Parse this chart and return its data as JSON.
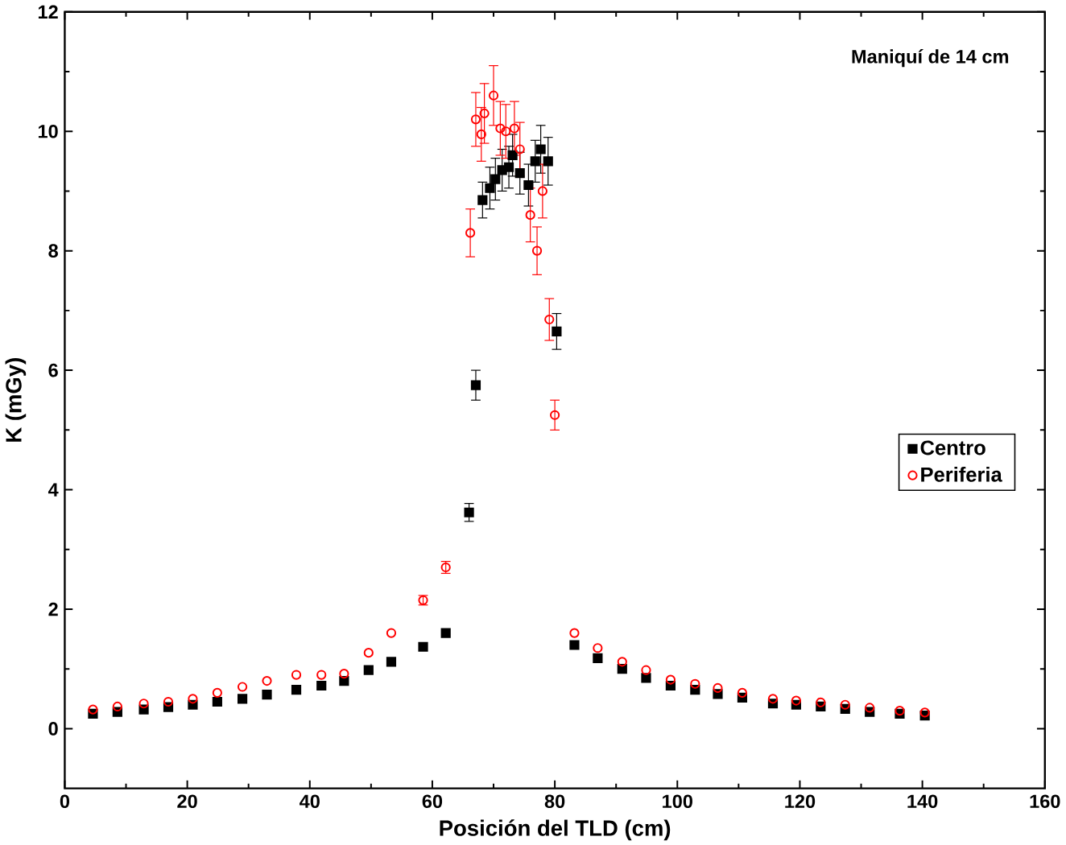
{
  "chart_data": {
    "type": "scatter",
    "xlabel": "Posición del TLD (cm)",
    "ylabel": "K (mGy)",
    "annotations": [
      "Maniquí de 14 cm"
    ],
    "xlim": [
      0,
      160
    ],
    "ylim": [
      -1,
      12
    ],
    "xticks": [
      0,
      20,
      40,
      60,
      80,
      100,
      120,
      140,
      160
    ],
    "yticks": [
      0,
      2,
      4,
      6,
      8,
      10,
      12
    ],
    "legend": "right",
    "grid": false,
    "series": [
      {
        "name": "Centro",
        "color": "#000000",
        "marker": "square",
        "x": [
          4.6,
          8.6,
          12.9,
          16.9,
          20.9,
          24.9,
          29,
          33,
          37.8,
          41.9,
          45.6,
          49.6,
          53.3,
          58.5,
          62.2,
          66,
          67.1,
          68.2,
          69.4,
          70.3,
          71.4,
          72.5,
          73.1,
          74.3,
          75.7,
          76.8,
          77.7,
          78.9,
          80.3,
          83.2,
          87,
          91,
          94.9,
          98.9,
          102.9,
          106.6,
          110.6,
          115.6,
          119.4,
          123.4,
          127.4,
          131.4,
          136.3,
          140.4
        ],
        "values": [
          0.25,
          0.28,
          0.32,
          0.36,
          0.4,
          0.45,
          0.5,
          0.57,
          0.65,
          0.72,
          0.8,
          0.98,
          1.12,
          1.37,
          1.6,
          3.62,
          5.75,
          8.85,
          9.05,
          9.2,
          9.35,
          9.4,
          9.6,
          9.3,
          9.1,
          9.5,
          9.7,
          9.5,
          6.65,
          1.4,
          1.18,
          1.0,
          0.85,
          0.72,
          0.65,
          0.58,
          0.52,
          0.42,
          0.4,
          0.37,
          0.33,
          0.28,
          0.25,
          0.22
        ],
        "errors": [
          null,
          null,
          null,
          null,
          null,
          null,
          null,
          null,
          null,
          null,
          null,
          null,
          null,
          null,
          null,
          0.15,
          0.25,
          0.3,
          0.35,
          0.35,
          0.35,
          0.35,
          0.35,
          0.35,
          0.35,
          0.35,
          0.4,
          0.4,
          0.3,
          null,
          null,
          null,
          null,
          null,
          null,
          null,
          null,
          null,
          null,
          null,
          null,
          null,
          null,
          null
        ]
      },
      {
        "name": "Periferia",
        "color": "#ff0000",
        "marker": "circle",
        "x": [
          4.6,
          8.6,
          12.9,
          16.9,
          20.9,
          24.9,
          29,
          33,
          37.8,
          41.9,
          45.6,
          49.6,
          53.3,
          58.5,
          62.2,
          66.2,
          67.1,
          68,
          68.5,
          70,
          71.1,
          72,
          73.4,
          74.3,
          76,
          77.1,
          78,
          79.1,
          80,
          83.2,
          87,
          91,
          94.9,
          98.9,
          102.9,
          106.6,
          110.6,
          115.6,
          119.4,
          123.4,
          127.4,
          131.4,
          136.3,
          140.4
        ],
        "values": [
          0.32,
          0.37,
          0.42,
          0.45,
          0.5,
          0.6,
          0.7,
          0.8,
          0.9,
          0.9,
          0.92,
          1.27,
          1.6,
          2.15,
          2.7,
          8.3,
          10.2,
          9.95,
          10.3,
          10.6,
          10.05,
          10.0,
          10.05,
          9.7,
          8.6,
          8.0,
          9.0,
          6.85,
          5.25,
          1.6,
          1.35,
          1.12,
          0.98,
          0.82,
          0.75,
          0.68,
          0.6,
          0.5,
          0.47,
          0.44,
          0.4,
          0.35,
          0.3,
          0.27
        ],
        "errors": [
          null,
          null,
          null,
          null,
          null,
          null,
          null,
          null,
          null,
          null,
          null,
          null,
          null,
          0.08,
          0.1,
          0.4,
          0.45,
          0.45,
          0.5,
          0.5,
          0.45,
          0.45,
          0.45,
          0.45,
          0.45,
          0.4,
          0.45,
          0.35,
          0.25,
          null,
          null,
          null,
          null,
          null,
          null,
          null,
          null,
          null,
          null,
          null,
          null,
          null,
          null,
          null
        ]
      }
    ]
  }
}
